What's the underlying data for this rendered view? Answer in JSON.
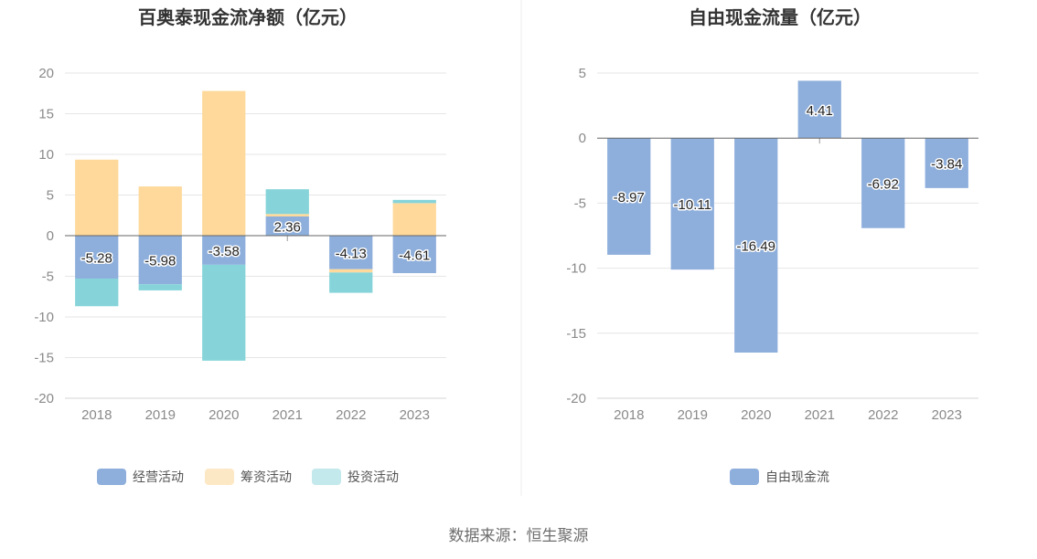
{
  "source": "数据来源：恒生聚源",
  "colors": {
    "operating": "#8eafdc",
    "financing": "#fed99b",
    "investing": "#86d4d9",
    "free_cash": "#8eafdc",
    "legend_financing": "#fde8c5",
    "legend_investing": "#c3e9ec",
    "grid": "#e6e6e6",
    "zero_line": "#666666"
  },
  "chart_data": [
    {
      "type": "bar",
      "stacked": true,
      "title": "百奥泰现金流净额（亿元）",
      "categories": [
        "2018",
        "2019",
        "2020",
        "2021",
        "2022",
        "2023"
      ],
      "ylim": [
        -20,
        20
      ],
      "yticks": [
        20,
        15,
        10,
        5,
        0,
        -5,
        -10,
        -15,
        -20
      ],
      "grid": true,
      "legend_position": "bottom",
      "series": [
        {
          "name": "经营活动",
          "key": "operating",
          "values": [
            -5.28,
            -5.98,
            -3.58,
            2.36,
            -4.13,
            -4.61
          ]
        },
        {
          "name": "筹资活动",
          "key": "financing",
          "values": [
            9.35,
            6.05,
            17.8,
            0.3,
            -0.4,
            4.0
          ]
        },
        {
          "name": "投资活动",
          "key": "investing",
          "values": [
            -3.4,
            -0.75,
            -11.8,
            3.05,
            -2.5,
            0.4
          ]
        }
      ],
      "data_labels": [
        "-5.28",
        "-5.98",
        "-3.58",
        "2.36",
        "-4.13",
        "-4.61"
      ]
    },
    {
      "type": "bar",
      "title": "自由现金流量（亿元）",
      "categories": [
        "2018",
        "2019",
        "2020",
        "2021",
        "2022",
        "2023"
      ],
      "ylim": [
        -20,
        5
      ],
      "yticks": [
        5,
        0,
        -5,
        -10,
        -15,
        -20
      ],
      "grid": true,
      "legend_position": "bottom",
      "series": [
        {
          "name": "自由现金流",
          "key": "free_cash",
          "values": [
            -8.97,
            -10.11,
            -16.49,
            4.41,
            -6.92,
            -3.84
          ]
        }
      ],
      "data_labels": [
        "-8.97",
        "-10.11",
        "-16.49",
        "4.41",
        "-6.92",
        "-3.84"
      ]
    }
  ]
}
